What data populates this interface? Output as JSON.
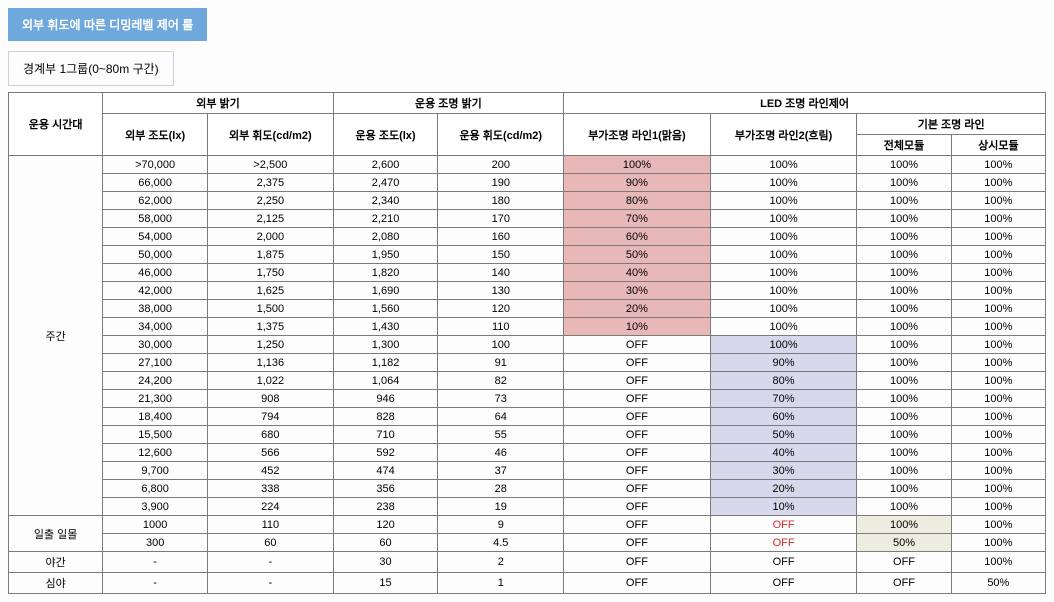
{
  "colors": {
    "badge_bg": "#6fa8dc",
    "badge_text": "#ffffff",
    "border": "#7b7b7b",
    "highlight_pink": "#e8b8b8",
    "highlight_lavender": "#d8d8ec",
    "highlight_cream": "#ecece0",
    "off_red": "#d42a2a"
  },
  "title": "외부 휘도에 따른 디밍레벨 제어 룰",
  "subtitle": "경계부 1그룹(0~80m 구간)",
  "headers": {
    "time": "운용 시간대",
    "ext_group": "외부 밝기",
    "op_group": "운용 조명 밝기",
    "led_group": "LED 조명 라인제어",
    "ext_lux": "외부 조도(lx)",
    "ext_cd": "외부 휘도(cd/m2)",
    "op_lux": "운용 조도(lx)",
    "op_cd": "운용 휘도(cd/m2)",
    "line1": "부가조명 라인1(맑음)",
    "line2": "부가조명 라인2(흐림)",
    "base_group": "기본 조명 라인",
    "base_all": "전체모듈",
    "base_always": "상시모듈"
  },
  "time_labels": {
    "day": "주간",
    "sun": "일출 일몰",
    "night": "야간",
    "deep": "심야"
  },
  "rows": [
    {
      "g": "day",
      "ext_lux": ">70,000",
      "ext_cd": ">2,500",
      "op_lux": "2,600",
      "op_cd": "200",
      "l1": "100%",
      "l1c": "pink",
      "l2": "100%",
      "all": "100%",
      "al": "100%"
    },
    {
      "g": "day",
      "ext_lux": "66,000",
      "ext_cd": "2,375",
      "op_lux": "2,470",
      "op_cd": "190",
      "l1": "90%",
      "l1c": "pink",
      "l2": "100%",
      "all": "100%",
      "al": "100%"
    },
    {
      "g": "day",
      "ext_lux": "62,000",
      "ext_cd": "2,250",
      "op_lux": "2,340",
      "op_cd": "180",
      "l1": "80%",
      "l1c": "pink",
      "l2": "100%",
      "all": "100%",
      "al": "100%"
    },
    {
      "g": "day",
      "ext_lux": "58,000",
      "ext_cd": "2,125",
      "op_lux": "2,210",
      "op_cd": "170",
      "l1": "70%",
      "l1c": "pink",
      "l2": "100%",
      "all": "100%",
      "al": "100%"
    },
    {
      "g": "day",
      "ext_lux": "54,000",
      "ext_cd": "2,000",
      "op_lux": "2,080",
      "op_cd": "160",
      "l1": "60%",
      "l1c": "pink",
      "l2": "100%",
      "all": "100%",
      "al": "100%"
    },
    {
      "g": "day",
      "ext_lux": "50,000",
      "ext_cd": "1,875",
      "op_lux": "1,950",
      "op_cd": "150",
      "l1": "50%",
      "l1c": "pink",
      "l2": "100%",
      "all": "100%",
      "al": "100%"
    },
    {
      "g": "day",
      "ext_lux": "46,000",
      "ext_cd": "1,750",
      "op_lux": "1,820",
      "op_cd": "140",
      "l1": "40%",
      "l1c": "pink",
      "l2": "100%",
      "all": "100%",
      "al": "100%"
    },
    {
      "g": "day",
      "ext_lux": "42,000",
      "ext_cd": "1,625",
      "op_lux": "1,690",
      "op_cd": "130",
      "l1": "30%",
      "l1c": "pink",
      "l2": "100%",
      "all": "100%",
      "al": "100%"
    },
    {
      "g": "day",
      "ext_lux": "38,000",
      "ext_cd": "1,500",
      "op_lux": "1,560",
      "op_cd": "120",
      "l1": "20%",
      "l1c": "pink",
      "l2": "100%",
      "all": "100%",
      "al": "100%"
    },
    {
      "g": "day",
      "ext_lux": "34,000",
      "ext_cd": "1,375",
      "op_lux": "1,430",
      "op_cd": "110",
      "l1": "10%",
      "l1c": "pink",
      "l2": "100%",
      "all": "100%",
      "al": "100%"
    },
    {
      "g": "day",
      "ext_lux": "30,000",
      "ext_cd": "1,250",
      "op_lux": "1,300",
      "op_cd": "100",
      "l1": "OFF",
      "l2": "100%",
      "l2c": "lav",
      "all": "100%",
      "al": "100%"
    },
    {
      "g": "day",
      "ext_lux": "27,100",
      "ext_cd": "1,136",
      "op_lux": "1,182",
      "op_cd": "91",
      "l1": "OFF",
      "l2": "90%",
      "l2c": "lav",
      "all": "100%",
      "al": "100%"
    },
    {
      "g": "day",
      "ext_lux": "24,200",
      "ext_cd": "1,022",
      "op_lux": "1,064",
      "op_cd": "82",
      "l1": "OFF",
      "l2": "80%",
      "l2c": "lav",
      "all": "100%",
      "al": "100%"
    },
    {
      "g": "day",
      "ext_lux": "21,300",
      "ext_cd": "908",
      "op_lux": "946",
      "op_cd": "73",
      "l1": "OFF",
      "l2": "70%",
      "l2c": "lav",
      "all": "100%",
      "al": "100%"
    },
    {
      "g": "day",
      "ext_lux": "18,400",
      "ext_cd": "794",
      "op_lux": "828",
      "op_cd": "64",
      "l1": "OFF",
      "l2": "60%",
      "l2c": "lav",
      "all": "100%",
      "al": "100%"
    },
    {
      "g": "day",
      "ext_lux": "15,500",
      "ext_cd": "680",
      "op_lux": "710",
      "op_cd": "55",
      "l1": "OFF",
      "l2": "50%",
      "l2c": "lav",
      "all": "100%",
      "al": "100%"
    },
    {
      "g": "day",
      "ext_lux": "12,600",
      "ext_cd": "566",
      "op_lux": "592",
      "op_cd": "46",
      "l1": "OFF",
      "l2": "40%",
      "l2c": "lav",
      "all": "100%",
      "al": "100%"
    },
    {
      "g": "day",
      "ext_lux": "9,700",
      "ext_cd": "452",
      "op_lux": "474",
      "op_cd": "37",
      "l1": "OFF",
      "l2": "30%",
      "l2c": "lav",
      "all": "100%",
      "al": "100%"
    },
    {
      "g": "day",
      "ext_lux": "6,800",
      "ext_cd": "338",
      "op_lux": "356",
      "op_cd": "28",
      "l1": "OFF",
      "l2": "20%",
      "l2c": "lav",
      "all": "100%",
      "al": "100%"
    },
    {
      "g": "day",
      "ext_lux": "3,900",
      "ext_cd": "224",
      "op_lux": "238",
      "op_cd": "19",
      "l1": "OFF",
      "l2": "10%",
      "l2c": "lav",
      "all": "100%",
      "al": "100%"
    },
    {
      "g": "sun",
      "ext_lux": "1000",
      "ext_cd": "110",
      "op_lux": "120",
      "op_cd": "9",
      "l1": "OFF",
      "l2": "OFF",
      "l2red": true,
      "all": "100%",
      "allc": "cream",
      "al": "100%"
    },
    {
      "g": "sun",
      "ext_lux": "300",
      "ext_cd": "60",
      "op_lux": "60",
      "op_cd": "4.5",
      "l1": "OFF",
      "l2": "OFF",
      "l2red": true,
      "all": "50%",
      "allc": "cream",
      "al": "100%"
    },
    {
      "g": "night",
      "ext_lux": "-",
      "ext_cd": "-",
      "op_lux": "30",
      "op_cd": "2",
      "l1": "OFF",
      "l2": "OFF",
      "all": "OFF",
      "al": "100%"
    },
    {
      "g": "deep",
      "ext_lux": "-",
      "ext_cd": "-",
      "op_lux": "15",
      "op_cd": "1",
      "l1": "OFF",
      "l2": "OFF",
      "all": "OFF",
      "al": "50%"
    }
  ]
}
